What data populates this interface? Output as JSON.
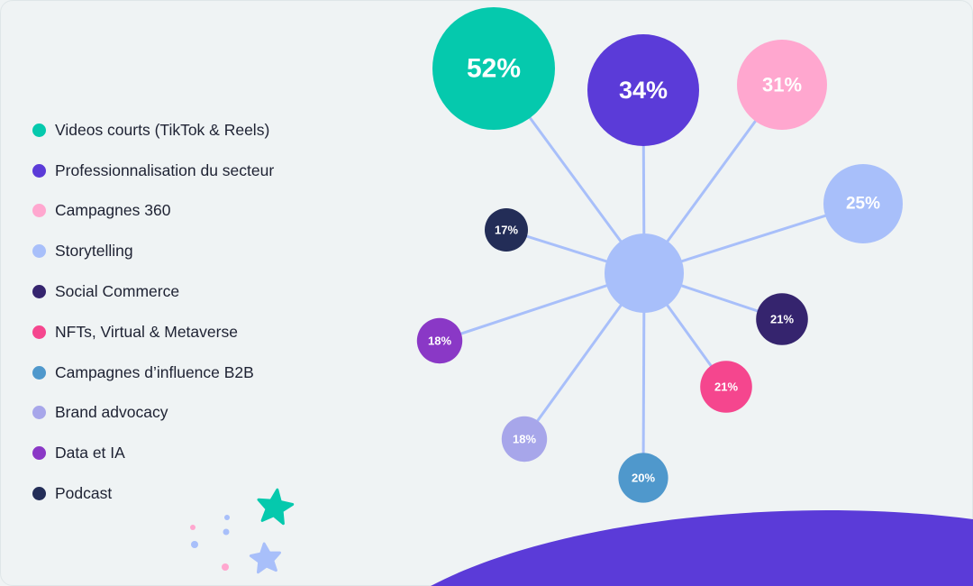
{
  "chart_data": {
    "type": "bubble-radial",
    "title": "",
    "legend_position": "left",
    "hub_color": "#a8bffa",
    "spoke_color": "#a8bffa",
    "series": [
      {
        "name": "Videos courts (TikTok & Reels)",
        "value": 52,
        "label": "52%",
        "color": "#05c9ad"
      },
      {
        "name": "Professionnalisation du secteur",
        "value": 34,
        "label": "34%",
        "color": "#5b3bd8"
      },
      {
        "name": "Campagnes 360",
        "value": 31,
        "label": "31%",
        "color": "#ffa7cf"
      },
      {
        "name": "Storytelling",
        "value": 25,
        "label": "25%",
        "color": "#a8bffa"
      },
      {
        "name": "Social Commerce",
        "value": 21,
        "label": "21%",
        "color": "#35246e"
      },
      {
        "name": "NFTs, Virtual & Metaverse",
        "value": 21,
        "label": "21%",
        "color": "#f5468e"
      },
      {
        "name": "Campagnes d’influence B2B",
        "value": 20,
        "label": "20%",
        "color": "#4f98cc"
      },
      {
        "name": "Brand advocacy",
        "value": 18,
        "label": "18%",
        "color": "#a7a6ea"
      },
      {
        "name": "Data et IA",
        "value": 18,
        "label": "18%",
        "color": "#8a38c6"
      },
      {
        "name": "Podcast",
        "value": 17,
        "label": "17%",
        "color": "#232d57"
      }
    ]
  },
  "decorations": {
    "wave_color": "#5b3bd8",
    "star_large_color": "#05c9ad",
    "star_small_color": "#a8bffa"
  }
}
